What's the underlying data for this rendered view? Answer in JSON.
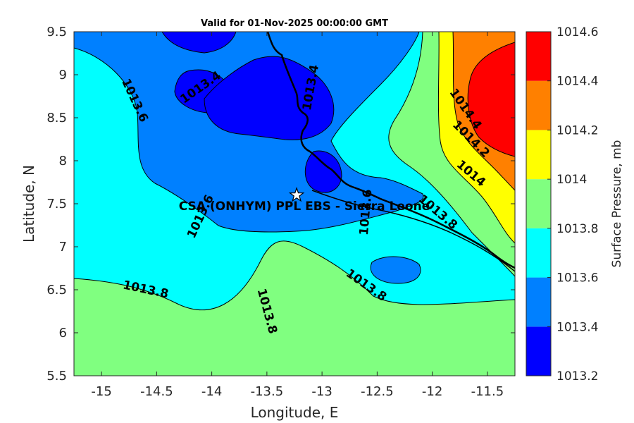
{
  "title": "Valid for 01-Nov-2025 00:00:00 GMT",
  "x_axis": {
    "label": "Longitude, E",
    "range": [
      -15.25,
      -11.25
    ],
    "ticks": [
      -15,
      -14.5,
      -14,
      -13.5,
      -13,
      -12.5,
      -12,
      -11.5
    ],
    "tick_labels": [
      "-15",
      "-14.5",
      "-14",
      "-13.5",
      "-13",
      "-12.5",
      "-12",
      "-11.5"
    ]
  },
  "y_axis": {
    "label": "Latitude, N",
    "range": [
      5.5,
      9.5
    ],
    "ticks": [
      5.5,
      6,
      6.5,
      7,
      7.5,
      8,
      8.5,
      9,
      9.5
    ],
    "tick_labels": [
      "5.5",
      "6",
      "6.5",
      "7",
      "7.5",
      "8",
      "8.5",
      "9",
      "9.5"
    ]
  },
  "colorbar": {
    "label": "Surface Pressure, mb",
    "levels": [
      1013.2,
      1013.4,
      1013.6,
      1013.8,
      1014,
      1014.2,
      1014.4,
      1014.6
    ],
    "tick_labels": [
      "1013.2",
      "1013.4",
      "1013.6",
      "1013.8",
      "1014",
      "1014.2",
      "1014.4",
      "1014.6"
    ],
    "colors": [
      "#0000ff",
      "#0080ff",
      "#00ffff",
      "#80ff80",
      "#ffff00",
      "#ff8000",
      "#ff0000",
      "#800000"
    ]
  },
  "station": {
    "label": "CSA (ONHYM) PPL EBS  - Sierra Leone",
    "lon": -13.23,
    "lat": 7.6,
    "marker": "star-icon"
  },
  "contour_labels": [
    {
      "text": "1013.4",
      "lon": -14.1,
      "lat": 8.85,
      "angle": -35
    },
    {
      "text": "1013.6",
      "lon": -14.7,
      "lat": 8.7,
      "angle": 65
    },
    {
      "text": "1013.4",
      "lon": -13.1,
      "lat": 8.85,
      "angle": -80
    },
    {
      "text": "1013.6",
      "lon": -14.1,
      "lat": 7.35,
      "angle": -65
    },
    {
      "text": "1013.6",
      "lon": -12.6,
      "lat": 7.4,
      "angle": -85
    },
    {
      "text": "1013.8",
      "lon": -14.6,
      "lat": 6.5,
      "angle": 12
    },
    {
      "text": "1013.8",
      "lon": -13.5,
      "lat": 6.25,
      "angle": 75
    },
    {
      "text": "1013.8",
      "lon": -12.6,
      "lat": 6.55,
      "angle": 35
    },
    {
      "text": "1013.8",
      "lon": -11.95,
      "lat": 7.4,
      "angle": 40
    },
    {
      "text": "1014",
      "lon": -11.65,
      "lat": 7.85,
      "angle": 40
    },
    {
      "text": "1014.2",
      "lon": -11.65,
      "lat": 8.25,
      "angle": 45
    },
    {
      "text": "1014.4",
      "lon": -11.7,
      "lat": 8.6,
      "angle": 55
    }
  ]
}
